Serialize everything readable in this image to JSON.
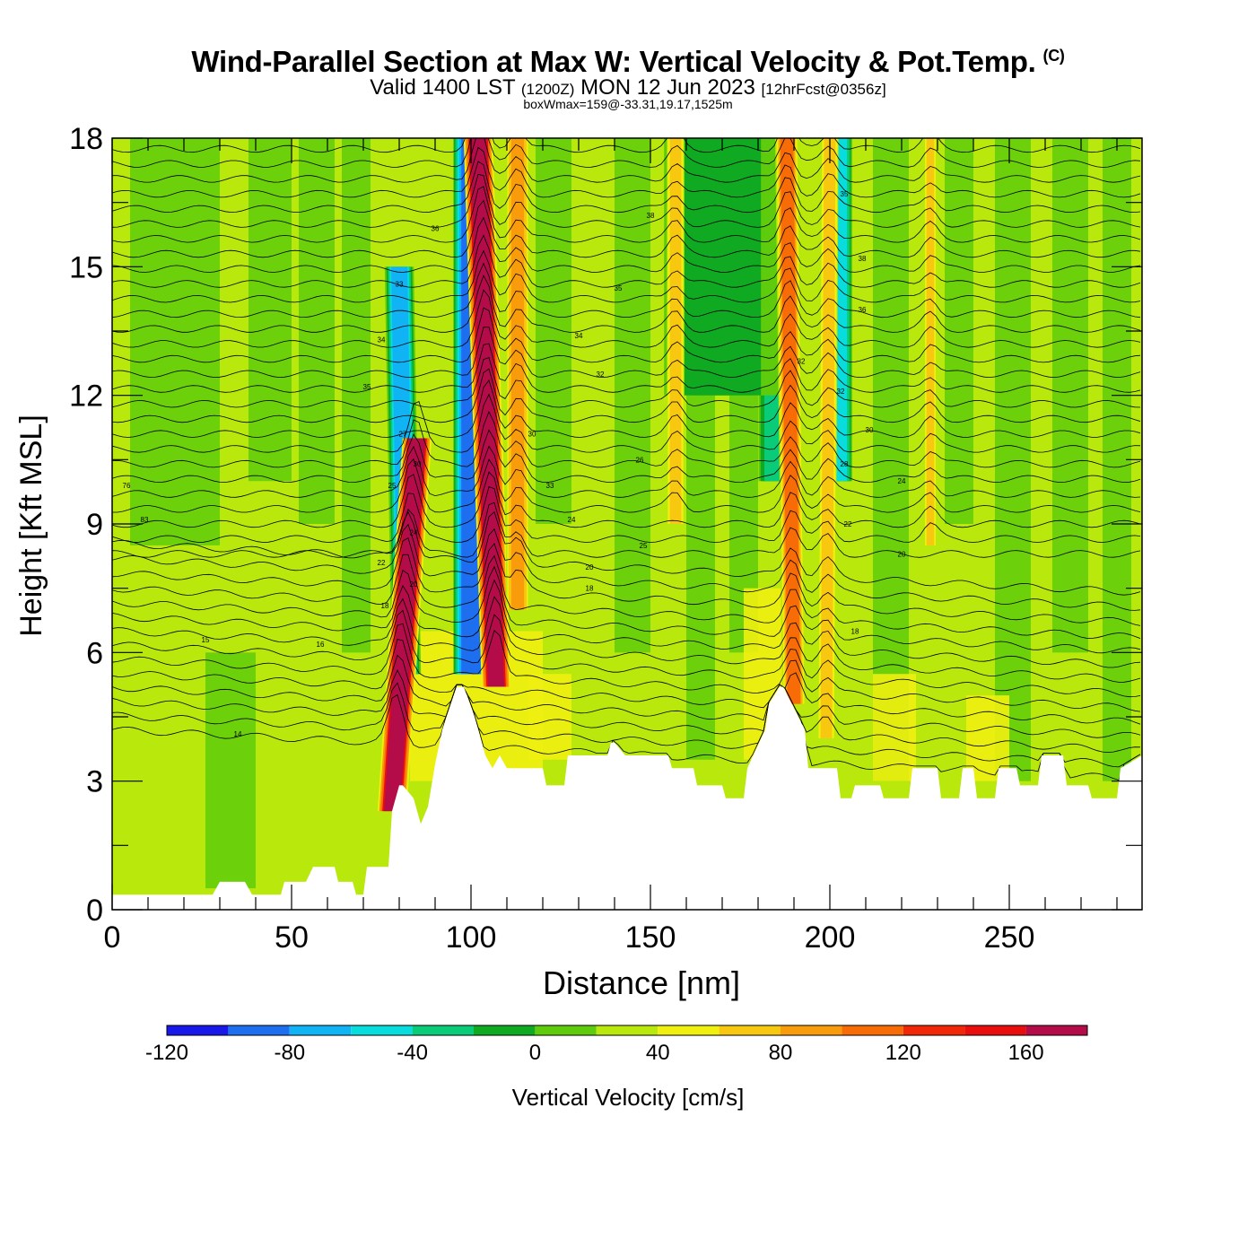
{
  "header": {
    "title": "Wind-Parallel Section at Max W: Vertical Velocity & Pot.Temp.",
    "title_suffix": "(C)",
    "valid_prefix": "Valid 1400 LST",
    "valid_utc": "(1200Z)",
    "valid_date": "MON 12 Jun 2023",
    "forecast": "[12hrFcst@0356z]",
    "box_info": "boxWmax=159@-33.31,19.17,1525m"
  },
  "chart_data": {
    "type": "heatmap",
    "xlabel": "Distance [nm]",
    "ylabel": "Height [Kft MSL]",
    "xlim": [
      0,
      287
    ],
    "ylim": [
      0,
      18
    ],
    "xticks": [
      0,
      50,
      100,
      150,
      200,
      250
    ],
    "yticks": [
      0,
      3,
      6,
      9,
      12,
      15,
      18
    ],
    "grid": false,
    "colorbar": {
      "label": "Vertical Velocity [cm/s]",
      "levels": [
        -140,
        -120,
        -100,
        -80,
        -60,
        -40,
        -20,
        0,
        20,
        40,
        60,
        80,
        100,
        120,
        140,
        160,
        180
      ],
      "tick_labels": [
        "-120",
        "-80",
        "-40",
        "0",
        "40",
        "80",
        "120",
        "160"
      ],
      "tick_values": [
        -120,
        -80,
        -40,
        0,
        40,
        80,
        120,
        160
      ],
      "colors": [
        "#1818e8",
        "#1e6ef0",
        "#10b4f4",
        "#08dcdc",
        "#0acc78",
        "#10aa22",
        "#5ecc0c",
        "#b8e80c",
        "#f0f010",
        "#f8c810",
        "#f89c0c",
        "#f86c08",
        "#f02808",
        "#e80e0e",
        "#b40c48"
      ],
      "position": "bottom"
    },
    "background_value": 10,
    "updraft_columns": [
      {
        "x": 78,
        "x_top": 85,
        "half_width": 2.5,
        "value": 150,
        "y_base": 2.3,
        "y_top": 11
      },
      {
        "x": 107,
        "x_top": 102,
        "half_width": 2.5,
        "value": 160,
        "y_base": 5.2,
        "y_top": 18
      },
      {
        "x": 113,
        "x_top": 113,
        "half_width": 2,
        "value": 70,
        "y_base": 7,
        "y_top": 18
      },
      {
        "x": 157,
        "x_top": 157,
        "half_width": 1.5,
        "value": 50,
        "y_base": 9,
        "y_top": 18
      },
      {
        "x": 190,
        "x_top": 188,
        "half_width": 2,
        "value": 95,
        "y_base": 4.8,
        "y_top": 18
      },
      {
        "x": 199,
        "x_top": 200,
        "half_width": 1.5,
        "value": 55,
        "y_base": 4,
        "y_top": 18
      },
      {
        "x": 228,
        "x_top": 228,
        "half_width": 1.2,
        "value": 45,
        "y_base": 8.5,
        "y_top": 18
      }
    ],
    "downdraft_columns": [
      {
        "x": 82,
        "x_top": 80,
        "half_width": 2.5,
        "value": -90,
        "y_base": 5.5,
        "y_top": 15
      },
      {
        "x": 100,
        "x_top": 100,
        "half_width": 3,
        "value": -120,
        "y_base": 5.5,
        "y_top": 18
      },
      {
        "x": 185,
        "x_top": 185,
        "half_width": 3,
        "value": -55,
        "y_base": 10,
        "y_top": 18
      },
      {
        "x": 203,
        "x_top": 203,
        "half_width": 2,
        "value": -70,
        "y_base": 10,
        "y_top": 18
      },
      {
        "x": 170,
        "x_top": 170,
        "half_width": 10,
        "value": -30,
        "y_base": 12,
        "y_top": 18
      }
    ],
    "terrain": {
      "x": [
        0,
        28,
        30,
        37,
        39,
        47,
        48,
        54,
        56,
        62,
        63,
        67,
        68,
        70,
        71,
        77,
        78,
        80,
        81,
        84,
        85,
        86,
        88,
        90,
        92,
        96,
        98,
        101,
        102,
        104,
        106,
        108,
        110,
        120,
        121,
        126,
        127,
        138,
        139,
        140,
        143,
        155,
        156,
        162,
        163,
        170,
        171,
        176,
        177,
        182,
        183,
        186,
        187,
        193,
        194,
        202,
        203,
        206,
        207,
        214,
        215,
        222,
        223,
        230,
        231,
        236,
        237,
        240,
        241,
        246,
        247,
        252,
        253,
        258,
        259,
        265,
        266,
        272,
        273,
        280,
        281,
        287
      ],
      "y": [
        0.35,
        0.35,
        0.65,
        0.65,
        0.35,
        0.35,
        0.65,
        0.65,
        1.0,
        1.0,
        0.65,
        0.65,
        0.35,
        0.35,
        1.0,
        1.0,
        2.3,
        2.9,
        2.9,
        2.6,
        2.3,
        2.0,
        2.4,
        3.4,
        4.2,
        5.2,
        5.2,
        4.5,
        4.2,
        3.6,
        3.3,
        3.6,
        3.3,
        3.3,
        2.9,
        2.9,
        3.6,
        3.6,
        3.9,
        3.9,
        3.6,
        3.6,
        3.3,
        3.3,
        2.9,
        2.9,
        2.6,
        2.6,
        3.3,
        4.2,
        4.8,
        5.2,
        5.2,
        4.2,
        3.3,
        3.3,
        2.6,
        2.6,
        2.9,
        2.9,
        2.6,
        2.6,
        3.3,
        3.3,
        2.6,
        2.6,
        3.3,
        3.3,
        2.6,
        2.6,
        3.3,
        3.3,
        2.9,
        2.9,
        3.6,
        3.6,
        2.9,
        2.9,
        2.6,
        2.6,
        3.3,
        3.6
      ]
    },
    "theta_contour_labels": [
      {
        "text": "14",
        "x": 35,
        "y": 4.1
      },
      {
        "text": "15",
        "x": 26,
        "y": 6.3
      },
      {
        "text": "16",
        "x": 58,
        "y": 6.2
      },
      {
        "text": "18",
        "x": 133,
        "y": 7.5
      },
      {
        "text": "18",
        "x": 207,
        "y": 6.5
      },
      {
        "text": "20",
        "x": 133,
        "y": 8.0
      },
      {
        "text": "20",
        "x": 220,
        "y": 8.3
      },
      {
        "text": "22",
        "x": 205,
        "y": 9.0
      },
      {
        "text": "24",
        "x": 128,
        "y": 9.1
      },
      {
        "text": "24",
        "x": 220,
        "y": 10.0
      },
      {
        "text": "25",
        "x": 148,
        "y": 8.5
      },
      {
        "text": "26",
        "x": 147,
        "y": 10.5
      },
      {
        "text": "28",
        "x": 204,
        "y": 10.4
      },
      {
        "text": "30",
        "x": 117,
        "y": 11.1
      },
      {
        "text": "30",
        "x": 211,
        "y": 11.2
      },
      {
        "text": "32",
        "x": 192,
        "y": 12.8
      },
      {
        "text": "32",
        "x": 136,
        "y": 12.5
      },
      {
        "text": "33",
        "x": 122,
        "y": 9.9
      },
      {
        "text": "34",
        "x": 130,
        "y": 13.4
      },
      {
        "text": "34",
        "x": 75,
        "y": 13.3
      },
      {
        "text": "35",
        "x": 141,
        "y": 14.5
      },
      {
        "text": "36",
        "x": 90,
        "y": 15.9
      },
      {
        "text": "36",
        "x": 209,
        "y": 14.0
      },
      {
        "text": "38",
        "x": 150,
        "y": 16.2
      },
      {
        "text": "38",
        "x": 209,
        "y": 15.2
      },
      {
        "text": "35",
        "x": 204,
        "y": 16.7
      },
      {
        "text": "76",
        "x": 4,
        "y": 9.9
      },
      {
        "text": "83",
        "x": 9,
        "y": 9.1
      },
      {
        "text": "35",
        "x": 71,
        "y": 12.2
      },
      {
        "text": "33",
        "x": 80,
        "y": 14.6
      },
      {
        "text": "30",
        "x": 85,
        "y": 10.4
      },
      {
        "text": "27",
        "x": 81,
        "y": 11.1
      },
      {
        "text": "25",
        "x": 78,
        "y": 9.9
      },
      {
        "text": "24",
        "x": 84,
        "y": 8.8
      },
      {
        "text": "22",
        "x": 75,
        "y": 8.1
      },
      {
        "text": "20",
        "x": 84,
        "y": 7.6
      },
      {
        "text": "18",
        "x": 76,
        "y": 7.1
      },
      {
        "text": "32",
        "x": 203,
        "y": 12.1
      }
    ]
  }
}
